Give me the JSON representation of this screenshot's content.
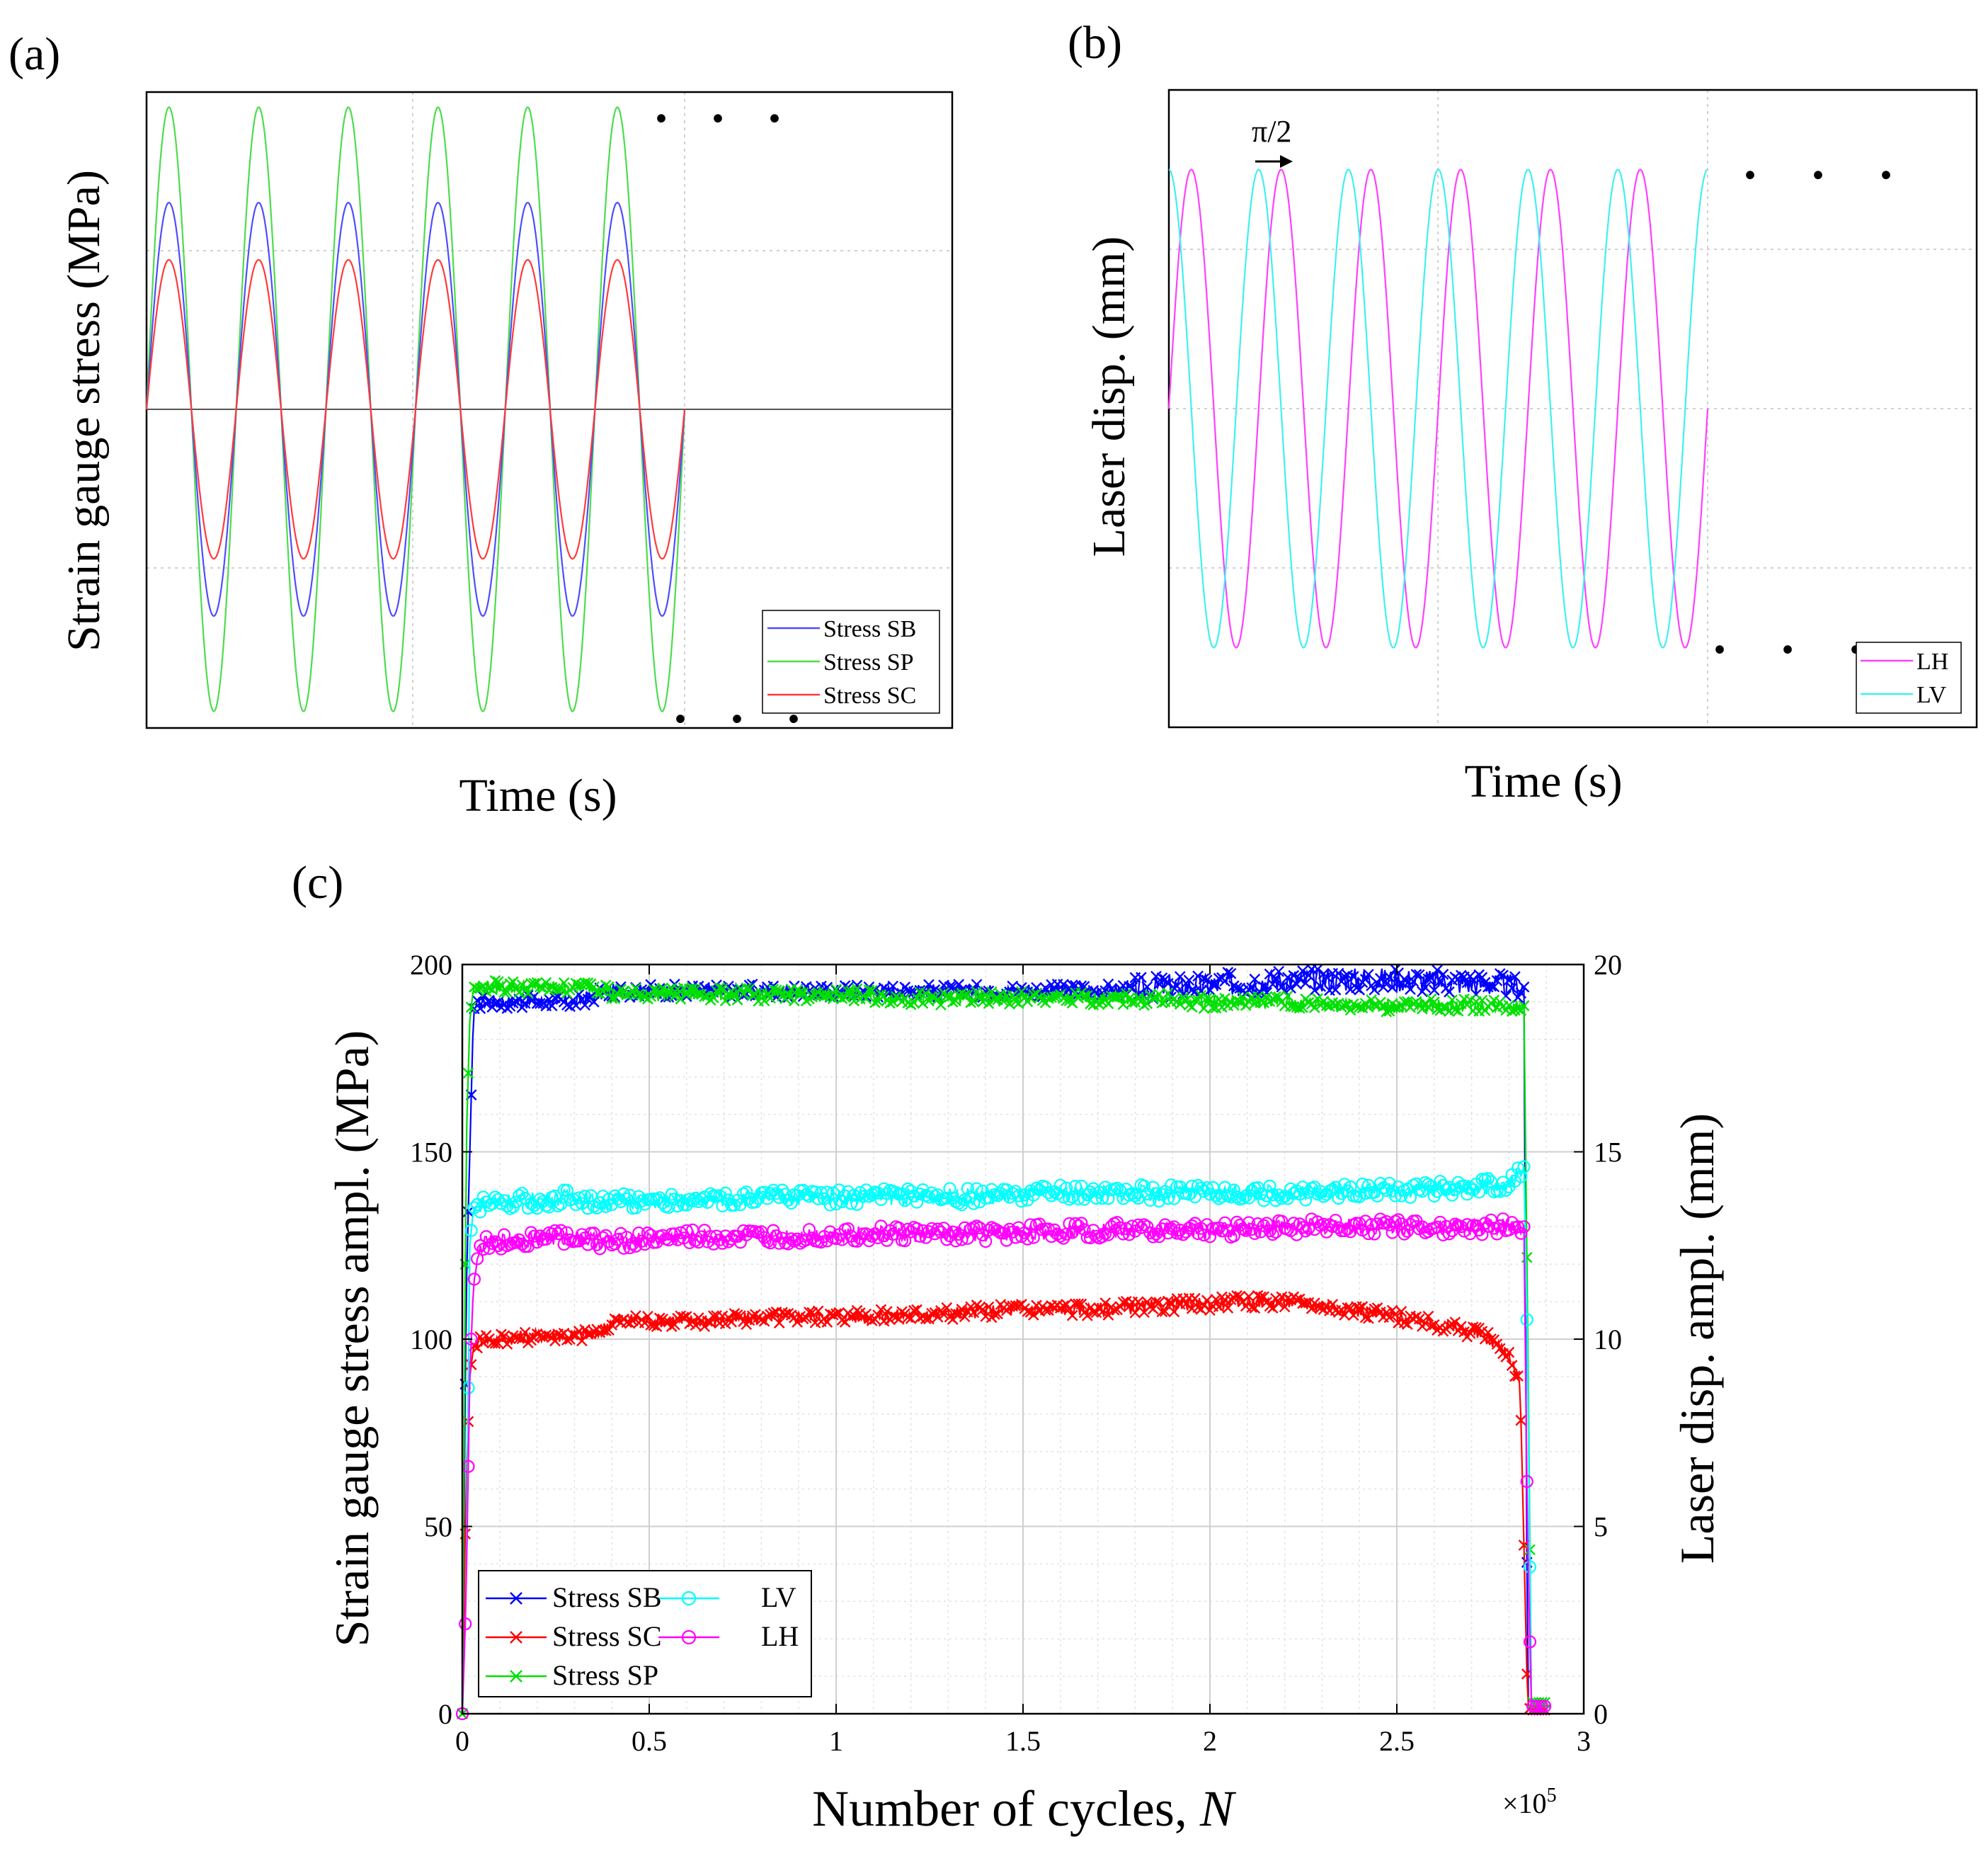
{
  "colors": {
    "blue": "#0000ff",
    "green": "#00e000",
    "red": "#ff0000",
    "cyan": "#00ffff",
    "magenta": "#ff00ff",
    "pblue": "#4d4dff",
    "pgreen": "#4ddc4d",
    "pred": "#ff3a3a",
    "pmagenta": "#ff40ff",
    "pcyan": "#40f0f0",
    "grid": "#d0d0d0",
    "axis": "#000000"
  },
  "chart_data": [
    {
      "panel_label": "(a)",
      "type": "line",
      "xlabel": "Time (s)",
      "ylabel": "Strain gauge stress (MPa)",
      "ellipsis": ". . .",
      "grid": "dotted",
      "legend_placement": "bottom-right",
      "series": [
        {
          "name": "Stress SB",
          "amplitude": 0.65,
          "cycles": 6,
          "phase_deg": 0
        },
        {
          "name": "Stress SP",
          "amplitude": 0.95,
          "cycles": 6,
          "phase_deg": 0
        },
        {
          "name": "Stress SC",
          "amplitude": 0.47,
          "cycles": 6,
          "phase_deg": 0
        }
      ]
    },
    {
      "panel_label": "(b)",
      "type": "line",
      "xlabel": "Time (s)",
      "ylabel": "Laser disp. (mm)",
      "annotation": "π/2",
      "ellipsis": ". . .",
      "grid": "dotted",
      "legend_placement": "bottom-right",
      "series": [
        {
          "name": "LH",
          "amplitude": 0.75,
          "cycles": 6,
          "phase_deg": 0
        },
        {
          "name": "LV",
          "amplitude": 0.75,
          "cycles": 6,
          "phase_deg": 90
        }
      ]
    },
    {
      "panel_label": "(c)",
      "type": "line",
      "xlabel_text": "Number of cycles, ",
      "xlabel_var": "N",
      "x_multiplier": "×10",
      "x_multiplier_exp": "5",
      "ylabel_left": "Strain gauge  stress ampl. (MPa)",
      "ylabel_right": "Laser disp. ampl. (mm)",
      "xlim": [
        0,
        3
      ],
      "ylim_left": [
        0,
        200
      ],
      "ylim_right": [
        0,
        20
      ],
      "xticks": [
        "0",
        "0.5",
        "1",
        "1.5",
        "2",
        "2.5",
        "3"
      ],
      "yticks_left": [
        "0",
        "50",
        "100",
        "150",
        "200"
      ],
      "yticks_right": [
        "0",
        "5",
        "10",
        "15",
        "20"
      ],
      "grid": "on",
      "legend_placement": "bottom-left",
      "series": [
        {
          "name": "Stress SB",
          "axis": "left",
          "marker": "x",
          "x": [
            0,
            0.01,
            0.02,
            0.03,
            0.05,
            0.1,
            0.2,
            0.3,
            0.4,
            0.5,
            0.7,
            0.9,
            1.1,
            1.3,
            1.5,
            1.7,
            1.9,
            2.1,
            2.2,
            2.3,
            2.5,
            2.7,
            2.84,
            2.85,
            2.86,
            2.9
          ],
          "y": [
            0,
            110,
            150,
            188,
            190,
            190,
            190,
            190,
            193,
            193,
            193,
            193,
            193,
            193,
            193,
            193,
            194,
            195,
            196,
            196,
            196,
            195,
            194,
            2,
            1,
            1
          ]
        },
        {
          "name": "Stress SC",
          "axis": "left",
          "marker": "x",
          "x": [
            0,
            0.01,
            0.02,
            0.03,
            0.05,
            0.1,
            0.2,
            0.3,
            0.36,
            0.4,
            0.5,
            0.7,
            0.9,
            1.1,
            1.3,
            1.5,
            1.7,
            1.9,
            2.1,
            2.2,
            2.3,
            2.5,
            2.6,
            2.7,
            2.75,
            2.8,
            2.83,
            2.85,
            2.86,
            2.9
          ],
          "y": [
            0,
            60,
            90,
            98,
            100,
            100,
            101,
            101,
            101,
            105,
            105,
            105,
            106,
            106,
            107,
            108,
            108,
            109,
            110,
            110,
            109,
            106,
            104,
            102,
            100,
            96,
            88,
            2,
            1,
            1
          ]
        },
        {
          "name": "Stress SP",
          "axis": "left",
          "marker": "x",
          "x": [
            0,
            0.01,
            0.02,
            0.03,
            0.05,
            0.1,
            0.2,
            0.3,
            0.38,
            0.4,
            0.6,
            0.8,
            1.0,
            1.2,
            1.4,
            1.6,
            1.8,
            2.0,
            2.2,
            2.4,
            2.6,
            2.8,
            2.84,
            2.85,
            2.86,
            2.9
          ],
          "y": [
            0,
            150,
            185,
            194,
            194,
            194,
            194,
            194,
            194,
            192,
            192,
            192,
            192,
            191,
            191,
            191,
            191,
            190,
            190,
            189,
            189,
            189,
            189,
            105,
            3,
            3
          ]
        },
        {
          "name": "LV",
          "axis": "right",
          "marker": "o",
          "x": [
            0,
            0.01,
            0.02,
            0.03,
            0.05,
            0.1,
            0.2,
            0.3,
            0.38,
            0.4,
            0.6,
            0.8,
            1.0,
            1.2,
            1.4,
            1.6,
            1.8,
            2.0,
            2.2,
            2.4,
            2.6,
            2.8,
            2.84,
            2.85,
            2.86,
            2.9
          ],
          "y": [
            0,
            3,
            12.5,
            13.5,
            13.6,
            13.7,
            13.7,
            13.8,
            13.6,
            13.7,
            13.7,
            13.8,
            13.8,
            13.8,
            13.8,
            13.9,
            13.9,
            13.9,
            13.9,
            14.0,
            14.0,
            14.1,
            14.6,
            9.5,
            0.2,
            0.2
          ]
        },
        {
          "name": "LH",
          "axis": "right",
          "marker": "o",
          "x": [
            0,
            0.01,
            0.02,
            0.03,
            0.05,
            0.1,
            0.2,
            0.3,
            0.38,
            0.4,
            0.6,
            0.8,
            1.0,
            1.2,
            1.4,
            1.6,
            1.8,
            2.0,
            2.2,
            2.4,
            2.6,
            2.8,
            2.84,
            2.85,
            2.86,
            2.9
          ],
          "y": [
            0,
            3,
            9,
            11.5,
            12.5,
            12.6,
            12.7,
            12.7,
            12.6,
            12.6,
            12.7,
            12.7,
            12.8,
            12.8,
            12.8,
            12.9,
            12.9,
            12.9,
            13.0,
            13.0,
            13.0,
            13.0,
            13.0,
            4.5,
            0.2,
            0.2
          ]
        }
      ],
      "legend": {
        "col1": [
          "Stress SB",
          "Stress SC",
          "Stress SP"
        ],
        "col2": [
          "LV",
          "LH"
        ]
      }
    }
  ]
}
